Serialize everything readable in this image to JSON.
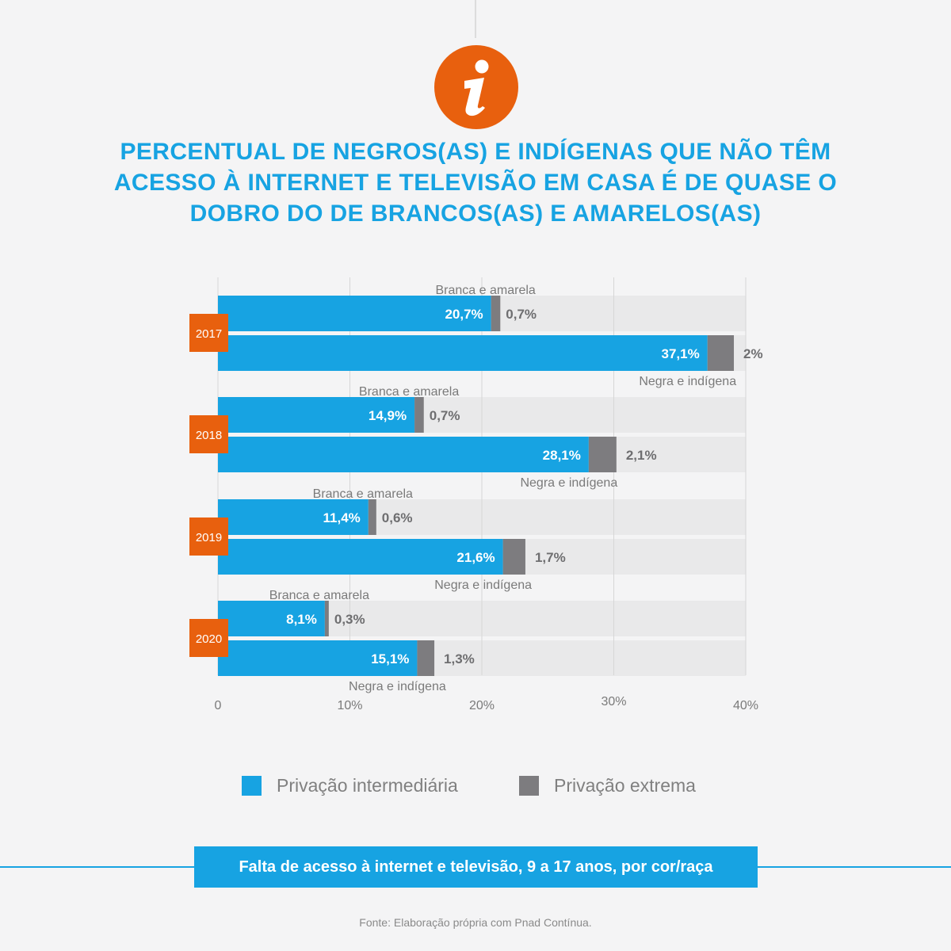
{
  "title_lines": [
    "PERCENTUAL DE NEGROS(AS) E INDÍGENAS QUE NÃO TÊM",
    "ACESSO À INTERNET E TELEVISÃO EM CASA  É DE QUASE O",
    "DOBRO DO DE BRANCOS(AS) E AMARELOS(AS)"
  ],
  "icon": "info-icon",
  "colors": {
    "intermediate": "#17a3e2",
    "extreme": "#7d7c7f",
    "accent": "#e8600e",
    "track": "#e9e9ea",
    "title": "#17a3e2"
  },
  "chart_data": {
    "type": "bar",
    "orientation": "horizontal",
    "stacked": true,
    "xlim": [
      0,
      40
    ],
    "x_ticks": [
      0,
      10,
      20,
      30,
      40
    ],
    "x_tick_labels": [
      "0",
      "10%",
      "20%",
      "30%",
      "40%"
    ],
    "grid": true,
    "legend_position": "bottom",
    "groups": [
      {
        "year": "2017",
        "bars": [
          {
            "category": "Branca e amarela",
            "intermediate": 20.7,
            "extreme": 0.7,
            "intermediate_label": "20,7%",
            "extreme_label": "0,7%"
          },
          {
            "category": "Negra e indígena",
            "intermediate": 37.1,
            "extreme": 2.0,
            "intermediate_label": "37,1%",
            "extreme_label": "2%"
          }
        ]
      },
      {
        "year": "2018",
        "bars": [
          {
            "category": "Branca e amarela",
            "intermediate": 14.9,
            "extreme": 0.7,
            "intermediate_label": "14,9%",
            "extreme_label": "0,7%"
          },
          {
            "category": "Negra e indígena",
            "intermediate": 28.1,
            "extreme": 2.1,
            "intermediate_label": "28,1%",
            "extreme_label": "2,1%"
          }
        ]
      },
      {
        "year": "2019",
        "bars": [
          {
            "category": "Branca e amarela",
            "intermediate": 11.4,
            "extreme": 0.6,
            "intermediate_label": "11,4%",
            "extreme_label": "0,6%"
          },
          {
            "category": "Negra e indígena",
            "intermediate": 21.6,
            "extreme": 1.7,
            "intermediate_label": "21,6%",
            "extreme_label": "1,7%"
          }
        ]
      },
      {
        "year": "2020",
        "bars": [
          {
            "category": "Branca e amarela",
            "intermediate": 8.1,
            "extreme": 0.3,
            "intermediate_label": "8,1%",
            "extreme_label": "0,3%"
          },
          {
            "category": "Negra e indígena",
            "intermediate": 15.1,
            "extreme": 1.3,
            "intermediate_label": "15,1%",
            "extreme_label": "1,3%"
          }
        ]
      }
    ],
    "series": [
      {
        "key": "intermediate",
        "name": "Privação intermediária"
      },
      {
        "key": "extreme",
        "name": "Privação extrema"
      }
    ]
  },
  "caption": "Falta de acesso à internet e televisão, 9 a 17 anos, por cor/raça",
  "source": "Fonte: Elaboração própria com Pnad Contínua."
}
